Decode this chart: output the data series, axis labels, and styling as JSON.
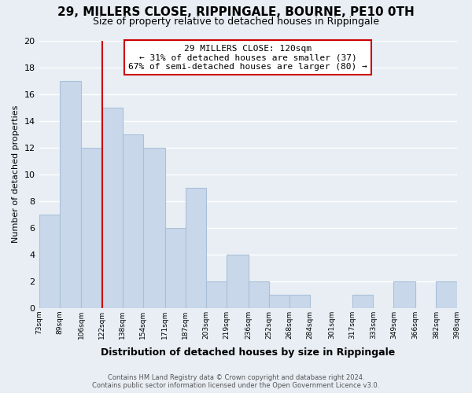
{
  "title": "29, MILLERS CLOSE, RIPPINGALE, BOURNE, PE10 0TH",
  "subtitle": "Size of property relative to detached houses in Rippingale",
  "xlabel": "Distribution of detached houses by size in Rippingale",
  "ylabel": "Number of detached properties",
  "bin_labels": [
    "73sqm",
    "89sqm",
    "106sqm",
    "122sqm",
    "138sqm",
    "154sqm",
    "171sqm",
    "187sqm",
    "203sqm",
    "219sqm",
    "236sqm",
    "252sqm",
    "268sqm",
    "284sqm",
    "301sqm",
    "317sqm",
    "333sqm",
    "349sqm",
    "366sqm",
    "382sqm",
    "398sqm"
  ],
  "bin_edges": [
    73,
    89,
    106,
    122,
    138,
    154,
    171,
    187,
    203,
    219,
    236,
    252,
    268,
    284,
    301,
    317,
    333,
    349,
    366,
    382,
    398
  ],
  "counts": [
    7,
    17,
    12,
    15,
    13,
    12,
    6,
    9,
    2,
    4,
    2,
    1,
    1,
    0,
    0,
    1,
    0,
    2,
    0,
    2
  ],
  "bar_color": "#c8d8ea",
  "bar_edge_color": "#aac0d8",
  "property_line_x": 122,
  "property_line_color": "#cc0000",
  "annotation_line1": "29 MILLERS CLOSE: 120sqm",
  "annotation_line2": "← 31% of detached houses are smaller (37)",
  "annotation_line3": "67% of semi-detached houses are larger (80) →",
  "annotation_box_color": "#ffffff",
  "annotation_box_edge": "#cc0000",
  "ylim": [
    0,
    20
  ],
  "yticks": [
    0,
    2,
    4,
    6,
    8,
    10,
    12,
    14,
    16,
    18,
    20
  ],
  "footer_line1": "Contains HM Land Registry data © Crown copyright and database right 2024.",
  "footer_line2": "Contains public sector information licensed under the Open Government Licence v3.0.",
  "background_color": "#e8eef4",
  "grid_color": "#ffffff",
  "fig_width": 6.0,
  "fig_height": 5.0
}
